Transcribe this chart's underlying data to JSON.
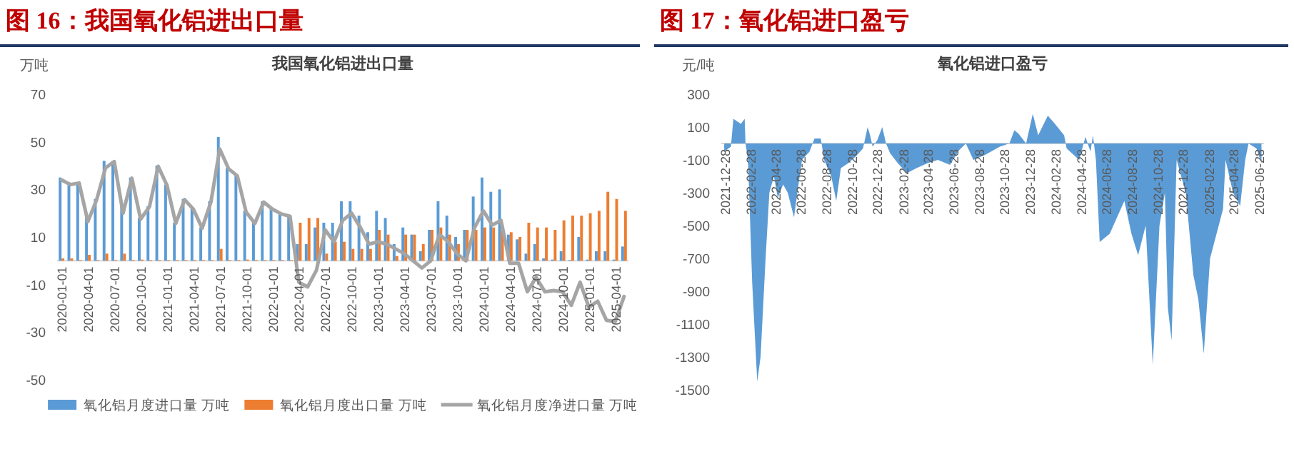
{
  "chart_data": [
    {
      "type": "bar",
      "title": "图 16：我国氧化铝进出口量",
      "subtitle": "我国氧化铝进出口量",
      "ylabel": "万吨",
      "ylim": [
        -50,
        70
      ],
      "yticks": [
        -50,
        -30,
        -10,
        10,
        30,
        50,
        70
      ],
      "legend": "bottom",
      "categories": [
        "2020-01-01",
        null,
        null,
        "2020-04-01",
        null,
        null,
        "2020-07-01",
        null,
        null,
        "2020-10-01",
        null,
        null,
        "2021-01-01",
        null,
        null,
        "2021-04-01",
        null,
        null,
        "2021-07-01",
        null,
        null,
        "2021-10-01",
        null,
        null,
        "2022-01-01",
        null,
        null,
        "2022-04-01",
        null,
        null,
        "2022-07-01",
        null,
        null,
        "2022-10-01",
        null,
        null,
        "2023-01-01",
        null,
        null,
        "2023-04-01",
        null,
        null,
        "2023-07-01",
        null,
        null,
        "2023-10-01",
        null,
        null,
        "2024-01-01",
        null,
        null,
        "2024-04-01",
        null,
        null,
        "2024-07-01",
        null,
        null,
        "2024-10-01",
        null,
        null,
        "2025-01-01",
        null,
        null,
        "2025-04-01",
        null
      ],
      "series": [
        {
          "name": "氧化铝月度进口量 万吨",
          "type": "bar",
          "color": "#5b9bd5",
          "values": [
            35,
            33,
            33,
            19,
            26,
            42,
            42,
            23,
            35,
            18,
            23,
            40,
            32,
            16,
            26,
            22,
            14,
            25,
            52,
            39,
            36,
            21,
            16,
            25,
            22,
            20,
            19,
            7,
            7,
            14,
            16,
            16,
            25,
            25,
            19,
            12,
            21,
            18,
            7,
            14,
            11,
            4,
            13,
            25,
            19,
            10,
            13,
            27,
            35,
            29,
            30,
            11,
            9,
            3,
            7,
            1,
            0.5,
            4,
            0.3,
            10,
            0.5,
            4,
            4,
            0.5,
            6
          ]
        },
        {
          "name": "氧化铝月度出口量 万吨",
          "type": "bar",
          "color": "#ed7d31",
          "values": [
            1,
            1,
            0.3,
            2.5,
            0.3,
            3,
            0.3,
            3,
            0.3,
            0.5,
            0.3,
            0.3,
            0.3,
            0.3,
            0.3,
            0.3,
            0.3,
            0.3,
            5,
            0.3,
            0.3,
            0.5,
            0.3,
            0.3,
            0.3,
            0.3,
            0.3,
            16,
            18,
            18,
            3,
            8,
            8,
            5,
            5,
            5,
            13,
            11,
            2,
            11,
            11,
            7,
            13,
            14,
            11,
            7,
            13,
            13,
            14,
            14,
            13,
            12,
            10,
            16,
            14,
            14,
            13,
            17,
            19,
            19,
            20,
            21,
            29,
            26,
            21
          ]
        },
        {
          "name": "氧化铝月度净进口量 万吨",
          "type": "line",
          "color": "#a5a5a5",
          "values": [
            34,
            32,
            32.7,
            16.5,
            25.7,
            39,
            41.7,
            20,
            34.7,
            17.5,
            22.7,
            39.7,
            31.7,
            15.7,
            25.7,
            21.7,
            13.7,
            24.7,
            47,
            38.7,
            35.7,
            20.5,
            15.7,
            24.7,
            21.7,
            19.7,
            18.7,
            -9,
            -11,
            -4,
            13,
            8,
            17,
            20,
            14,
            7,
            8,
            7,
            5,
            3,
            0,
            -3,
            0,
            11,
            8,
            3,
            0,
            14,
            21,
            15,
            17,
            -1,
            -1,
            -13,
            -7,
            -13,
            -12.5,
            -13,
            -18.7,
            -9,
            -19.5,
            -17,
            -25,
            -25.5,
            -15
          ]
        }
      ]
    },
    {
      "type": "area",
      "title": "图 17：氧化铝进口盈亏",
      "subtitle": "氧化铝进口盈亏",
      "ylabel": "元/吨",
      "ylim": [
        -1500,
        300
      ],
      "yticks": [
        -1500,
        -1300,
        -1100,
        -900,
        -700,
        -500,
        -300,
        -100,
        100,
        300
      ],
      "xlim": [
        "2021-12-20",
        "2025-07-10"
      ],
      "xticks": [
        "2021-12-28",
        "2022-02-28",
        "2022-04-28",
        "2022-06-28",
        "2022-08-28",
        "2022-10-28",
        "2022-12-28",
        "2023-02-28",
        "2023-04-28",
        "2023-06-28",
        "2023-08-28",
        "2023-10-28",
        "2023-12-28",
        "2024-02-28",
        "2024-04-28",
        "2024-06-28",
        "2024-08-28",
        "2024-10-28",
        "2024-12-28",
        "2025-02-28",
        "2025-04-28",
        "2025-06-28"
      ],
      "x": [
        "2021-12-27",
        "2022-01-12",
        "2022-01-18",
        "2022-02-05",
        "2022-02-14",
        "2022-02-16",
        "2022-02-22",
        "2022-03-04",
        "2022-03-16",
        "2022-03-24",
        "2022-04-05",
        "2022-04-14",
        "2022-04-25",
        "2022-05-04",
        "2022-05-17",
        "2022-05-28",
        "2022-06-12",
        "2022-06-20",
        "2022-07-01",
        "2022-07-19",
        "2022-07-31",
        "2022-08-15",
        "2022-08-23",
        "2022-09-09",
        "2022-09-21",
        "2022-10-02",
        "2022-10-20",
        "2022-11-06",
        "2022-11-24",
        "2022-12-05",
        "2022-12-11",
        "2022-12-17",
        "2022-12-28",
        "2023-01-09",
        "2023-01-18",
        "2023-01-28",
        "2023-02-15",
        "2023-03-09",
        "2023-04-01",
        "2023-04-28",
        "2023-05-22",
        "2023-06-20",
        "2023-07-12",
        "2023-07-28",
        "2023-08-15",
        "2023-09-12",
        "2023-10-17",
        "2023-11-09",
        "2023-11-21",
        "2023-12-01",
        "2023-12-19",
        "2024-01-04",
        "2024-01-17",
        "2024-02-09",
        "2024-02-26",
        "2024-03-19",
        "2024-03-25",
        "2024-04-24",
        "2024-05-09",
        "2024-05-21",
        "2024-05-27",
        "2024-06-03",
        "2024-06-12",
        "2024-07-06",
        "2024-08-10",
        "2024-08-27",
        "2024-09-12",
        "2024-09-30",
        "2024-10-17",
        "2024-11-02",
        "2024-11-15",
        "2024-11-22",
        "2024-12-01",
        "2024-12-13",
        "2025-01-04",
        "2025-01-22",
        "2025-02-03",
        "2025-02-16",
        "2025-03-03",
        "2025-04-03",
        "2025-04-09",
        "2025-04-27",
        "2025-05-14",
        "2025-05-26",
        "2025-06-03",
        "2025-06-22",
        "2025-07-04"
      ],
      "series": [
        {
          "color": "#5b9bd5",
          "values": [
            -50,
            -20,
            150,
            120,
            150,
            0,
            -100,
            -850,
            -1450,
            -1300,
            -700,
            -300,
            -200,
            -330,
            -250,
            -300,
            -450,
            -300,
            -100,
            -50,
            30,
            30,
            -100,
            -200,
            -350,
            -150,
            -120,
            -80,
            -30,
            100,
            50,
            -20,
            20,
            100,
            0,
            -60,
            -120,
            -180,
            -150,
            -120,
            -100,
            -130,
            -40,
            0,
            -100,
            -70,
            -20,
            0,
            80,
            60,
            0,
            180,
            50,
            170,
            120,
            50,
            -30,
            -100,
            40,
            -50,
            50,
            -100,
            -600,
            -550,
            -350,
            -550,
            -680,
            -500,
            -1350,
            -500,
            -300,
            -1000,
            -1200,
            -100,
            -300,
            -800,
            -950,
            -1280,
            -700,
            -400,
            -100,
            -300,
            -380,
            -100,
            0,
            -30,
            -120
          ]
        }
      ]
    }
  ]
}
